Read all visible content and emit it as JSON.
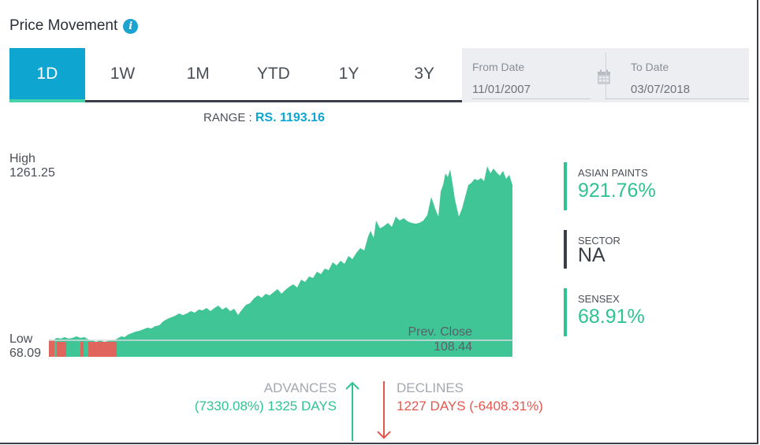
{
  "header": {
    "title": "Price Movement",
    "info_icon": "info-icon"
  },
  "tabs": [
    {
      "label": "1D",
      "active": true
    },
    {
      "label": "1W",
      "active": false
    },
    {
      "label": "1M",
      "active": false
    },
    {
      "label": "YTD",
      "active": false
    },
    {
      "label": "1Y",
      "active": false
    },
    {
      "label": "3Y",
      "active": false
    }
  ],
  "dates": {
    "from_label": "From Date",
    "from_value": "11/01/2007",
    "to_label": "To Date",
    "to_value": "03/07/2018",
    "icon": "calendar-icon"
  },
  "range": {
    "label": "RANGE :",
    "value": "RS. 1193.16"
  },
  "chart": {
    "high_label": "High",
    "high_value": "1261.25",
    "low_label": "Low",
    "low_value": "68.09",
    "prev_close_label": "Prev. Close",
    "prev_close_value": "108.44"
  },
  "stats": [
    {
      "label": "ASIAN PAINTS",
      "value": "921.76%"
    },
    {
      "label": "SECTOR",
      "value": "NA"
    },
    {
      "label": "SENSEX",
      "value": "68.91%"
    }
  ],
  "advances": {
    "label": "ADVANCES",
    "value": "(7330.08%) 1325 DAYS"
  },
  "declines": {
    "label": "DECLINES",
    "value": "1227 DAYS (-6408.31%)"
  },
  "colors": {
    "accent": "#0ea6d1",
    "up": "#2ec48f",
    "down": "#e4574e",
    "area": "#40c597"
  }
}
